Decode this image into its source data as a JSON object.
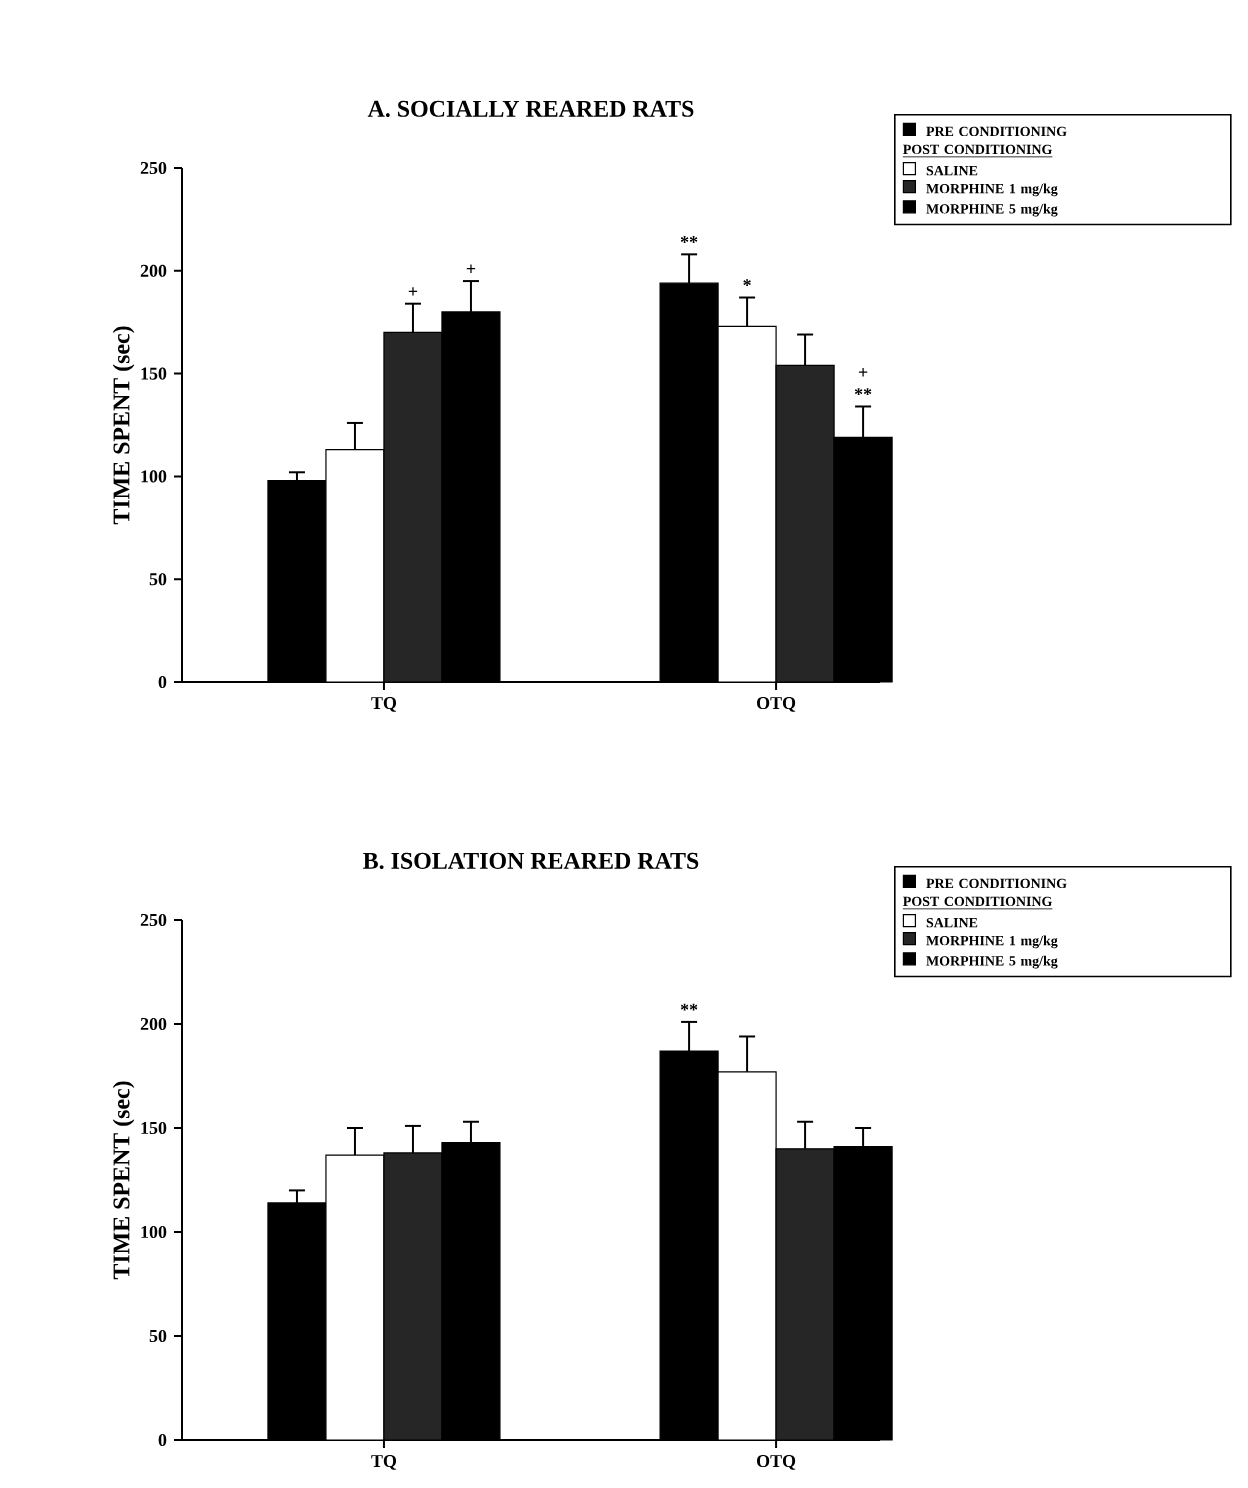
{
  "chart_data": [
    {
      "type": "bar",
      "title": "A.  SOCIALLY  REARED  RATS",
      "ylabel": "TIME  SPENT (sec)",
      "categories": [
        "TQ",
        "OTQ"
      ],
      "ylim": [
        0,
        250
      ],
      "yticks": [
        0,
        50,
        100,
        150,
        200,
        250
      ],
      "legend": "top right",
      "annotations": [
        "POST  CONDITIONING"
      ],
      "series": [
        {
          "name": "PRE CONDITIONING",
          "color": "#000000",
          "values": [
            98,
            194
          ],
          "errors": [
            [
              98,
              102
            ],
            [
              194,
              208
            ]
          ],
          "value_labels": [
            null,
            "**"
          ]
        },
        {
          "name": "SALINE",
          "color": "#ffffff",
          "values": [
            113,
            173
          ],
          "errors": [
            [
              113,
              126
            ],
            [
              173,
              187
            ]
          ],
          "value_labels": [
            null,
            "*"
          ]
        },
        {
          "name": "MORPHINE 1 mg/kg",
          "color": "#262626",
          "values": [
            170,
            154
          ],
          "errors": [
            [
              170,
              184
            ],
            [
              154,
              169
            ]
          ],
          "value_labels": [
            "+",
            null
          ]
        },
        {
          "name": "MORPHINE 5 mg/kg",
          "color": "#000000",
          "values": [
            180,
            119
          ],
          "errors": [
            [
              180,
              195
            ],
            [
              119,
              134
            ]
          ],
          "value_labels": [
            "+",
            "+ **"
          ]
        }
      ]
    },
    {
      "type": "bar",
      "title": "B.  ISOLATION  REARED  RATS",
      "ylabel": "TIME  SPENT (sec)",
      "categories": [
        "TQ",
        "OTQ"
      ],
      "ylim": [
        0,
        250
      ],
      "yticks": [
        0,
        50,
        100,
        150,
        200,
        250
      ],
      "legend": "top right",
      "annotations": [
        "POST  CONDITIONING"
      ],
      "series": [
        {
          "name": "PRE CONDITIONING",
          "color": "#000000",
          "values": [
            114,
            187
          ],
          "errors": [
            [
              114,
              120
            ],
            [
              187,
              201
            ]
          ],
          "value_labels": [
            null,
            "**"
          ]
        },
        {
          "name": "SALINE",
          "color": "#ffffff",
          "values": [
            137,
            177
          ],
          "errors": [
            [
              137,
              150
            ],
            [
              177,
              194
            ]
          ],
          "value_labels": [
            null,
            null
          ]
        },
        {
          "name": "MORPHINE 1 mg/kg",
          "color": "#262626",
          "values": [
            138,
            140
          ],
          "errors": [
            [
              138,
              151
            ],
            [
              140,
              153
            ]
          ],
          "value_labels": [
            null,
            null
          ]
        },
        {
          "name": "MORPHINE 5 mg/kg",
          "color": "#000000",
          "values": [
            143,
            141
          ],
          "errors": [
            [
              143,
              153
            ],
            [
              141,
              150
            ]
          ],
          "value_labels": [
            null,
            null
          ]
        }
      ]
    }
  ]
}
